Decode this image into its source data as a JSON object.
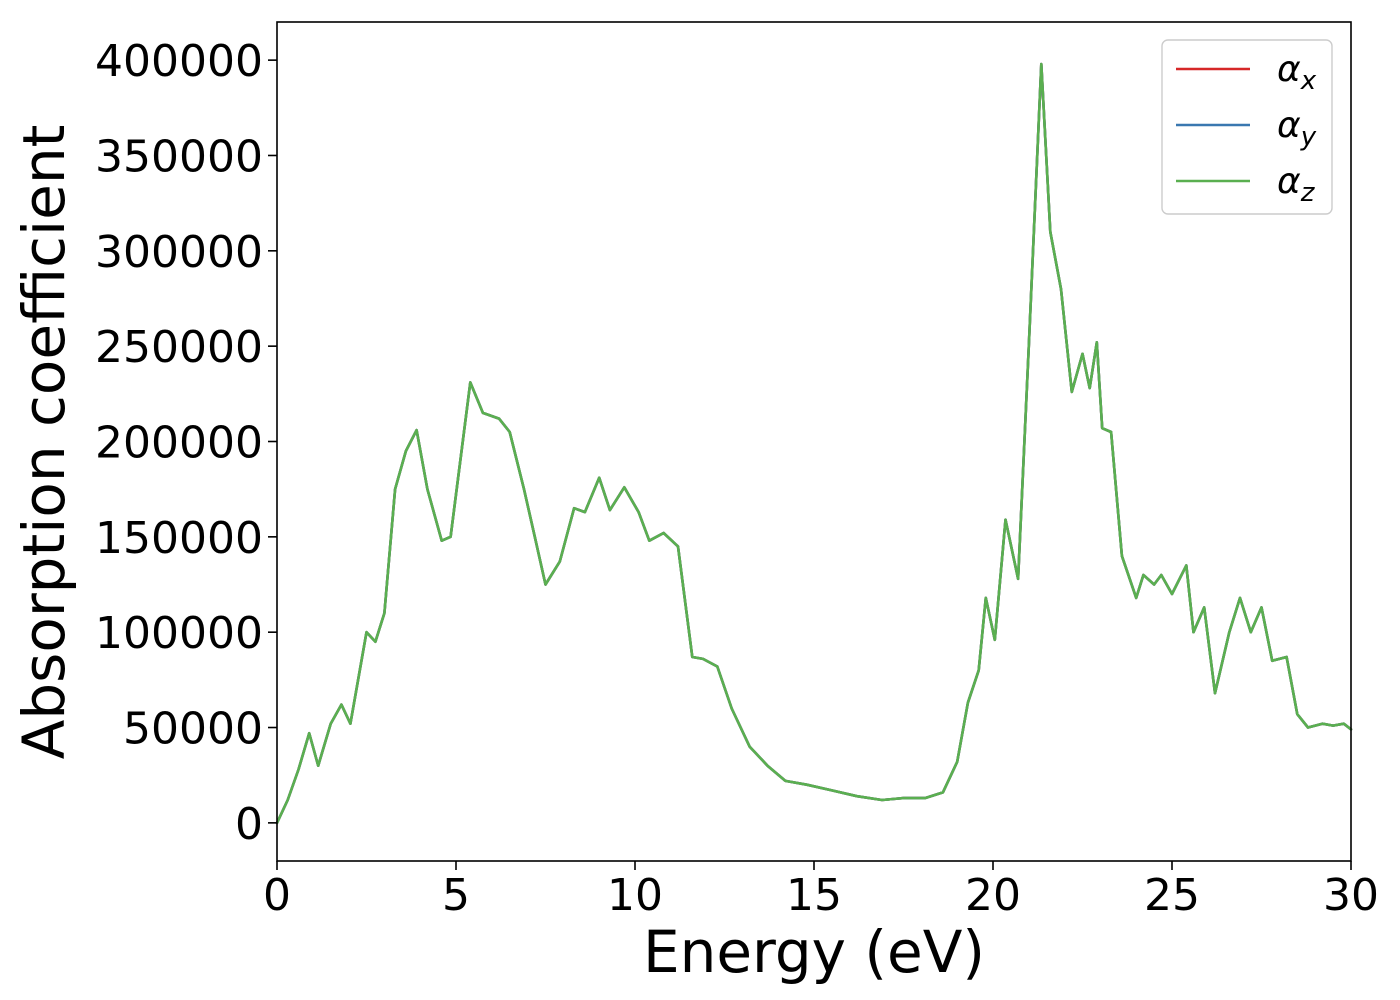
{
  "chart_data": {
    "type": "line",
    "title": "",
    "xlabel": "Energy (eV)",
    "ylabel": "Absorption coefficient",
    "xlim": [
      0,
      30
    ],
    "ylim": [
      -20000,
      420000
    ],
    "xticks": [
      0,
      5,
      10,
      15,
      20,
      25,
      30
    ],
    "yticks": [
      0,
      50000,
      100000,
      150000,
      200000,
      250000,
      300000,
      350000,
      400000
    ],
    "grid": false,
    "legend_position": "top-right",
    "series": [
      {
        "name": "αx",
        "legend_base": "α",
        "legend_sub": "x",
        "color": "#d62728",
        "x": [
          0,
          0.3,
          0.6,
          0.9,
          1.15,
          1.5,
          1.8,
          2.05,
          2.5,
          2.75,
          3.0,
          3.3,
          3.6,
          3.9,
          4.2,
          4.6,
          4.85,
          5.4,
          5.75,
          6.2,
          6.5,
          6.9,
          7.2,
          7.5,
          7.9,
          8.3,
          8.6,
          9.0,
          9.3,
          9.7,
          10.1,
          10.4,
          10.8,
          11.2,
          11.6,
          11.9,
          12.3,
          12.7,
          13.2,
          13.7,
          14.2,
          14.8,
          15.5,
          16.2,
          16.9,
          17.5,
          18.1,
          18.6,
          19.0,
          19.3,
          19.6,
          19.8,
          20.05,
          20.35,
          20.7,
          21.0,
          21.35,
          21.6,
          21.9,
          22.2,
          22.5,
          22.7,
          22.9,
          23.05,
          23.3,
          23.6,
          24.0,
          24.2,
          24.5,
          24.7,
          25.0,
          25.4,
          25.6,
          25.9,
          26.2,
          26.6,
          26.9,
          27.2,
          27.5,
          27.8,
          28.2,
          28.5,
          28.8,
          29.2,
          29.5,
          29.8,
          30.0
        ],
        "values": [
          0,
          12000,
          28000,
          47000,
          30000,
          52000,
          62000,
          52000,
          100000,
          95000,
          110000,
          175000,
          195000,
          206000,
          175000,
          148000,
          150000,
          231000,
          215000,
          212000,
          205000,
          175000,
          150000,
          125000,
          137000,
          165000,
          163000,
          181000,
          164000,
          176000,
          163000,
          148000,
          152000,
          145000,
          87000,
          86000,
          82000,
          60000,
          40000,
          30000,
          22000,
          20000,
          17000,
          14000,
          12000,
          13000,
          13000,
          16000,
          32000,
          63000,
          80000,
          118000,
          96000,
          159000,
          128000,
          250000,
          398000,
          310000,
          280000,
          226000,
          246000,
          228000,
          252000,
          207000,
          205000,
          140000,
          118000,
          130000,
          125000,
          130000,
          120000,
          135000,
          100000,
          113000,
          68000,
          100000,
          118000,
          100000,
          113000,
          85000,
          87000,
          57000,
          50000,
          52000,
          51000,
          52000,
          49000
        ]
      },
      {
        "name": "αy",
        "legend_base": "α",
        "legend_sub": "y",
        "color": "#3a78b0",
        "x": [
          0,
          0.3,
          0.6,
          0.9,
          1.15,
          1.5,
          1.8,
          2.05,
          2.5,
          2.75,
          3.0,
          3.3,
          3.6,
          3.9,
          4.2,
          4.6,
          4.85,
          5.4,
          5.75,
          6.2,
          6.5,
          6.9,
          7.2,
          7.5,
          7.9,
          8.3,
          8.6,
          9.0,
          9.3,
          9.7,
          10.1,
          10.4,
          10.8,
          11.2,
          11.6,
          11.9,
          12.3,
          12.7,
          13.2,
          13.7,
          14.2,
          14.8,
          15.5,
          16.2,
          16.9,
          17.5,
          18.1,
          18.6,
          19.0,
          19.3,
          19.6,
          19.8,
          20.05,
          20.35,
          20.7,
          21.0,
          21.35,
          21.6,
          21.9,
          22.2,
          22.5,
          22.7,
          22.9,
          23.05,
          23.3,
          23.6,
          24.0,
          24.2,
          24.5,
          24.7,
          25.0,
          25.4,
          25.6,
          25.9,
          26.2,
          26.6,
          26.9,
          27.2,
          27.5,
          27.8,
          28.2,
          28.5,
          28.8,
          29.2,
          29.5,
          29.8,
          30.0
        ],
        "values": [
          0,
          12000,
          28000,
          47000,
          30000,
          52000,
          62000,
          52000,
          100000,
          95000,
          110000,
          175000,
          195000,
          206000,
          175000,
          148000,
          150000,
          231000,
          215000,
          212000,
          205000,
          175000,
          150000,
          125000,
          137000,
          165000,
          163000,
          181000,
          164000,
          176000,
          163000,
          148000,
          152000,
          145000,
          87000,
          86000,
          82000,
          60000,
          40000,
          30000,
          22000,
          20000,
          17000,
          14000,
          12000,
          13000,
          13000,
          16000,
          32000,
          63000,
          80000,
          118000,
          96000,
          159000,
          128000,
          250000,
          398000,
          310000,
          280000,
          226000,
          246000,
          228000,
          252000,
          207000,
          205000,
          140000,
          118000,
          130000,
          125000,
          130000,
          120000,
          135000,
          100000,
          113000,
          68000,
          100000,
          118000,
          100000,
          113000,
          85000,
          87000,
          57000,
          50000,
          52000,
          51000,
          52000,
          49000
        ]
      },
      {
        "name": "αz",
        "legend_base": "α",
        "legend_sub": "z",
        "color": "#5aaf50",
        "x": [
          0,
          0.3,
          0.6,
          0.9,
          1.15,
          1.5,
          1.8,
          2.05,
          2.5,
          2.75,
          3.0,
          3.3,
          3.6,
          3.9,
          4.2,
          4.6,
          4.85,
          5.4,
          5.75,
          6.2,
          6.5,
          6.9,
          7.2,
          7.5,
          7.9,
          8.3,
          8.6,
          9.0,
          9.3,
          9.7,
          10.1,
          10.4,
          10.8,
          11.2,
          11.6,
          11.9,
          12.3,
          12.7,
          13.2,
          13.7,
          14.2,
          14.8,
          15.5,
          16.2,
          16.9,
          17.5,
          18.1,
          18.6,
          19.0,
          19.3,
          19.6,
          19.8,
          20.05,
          20.35,
          20.7,
          21.0,
          21.35,
          21.6,
          21.9,
          22.2,
          22.5,
          22.7,
          22.9,
          23.05,
          23.3,
          23.6,
          24.0,
          24.2,
          24.5,
          24.7,
          25.0,
          25.4,
          25.6,
          25.9,
          26.2,
          26.6,
          26.9,
          27.2,
          27.5,
          27.8,
          28.2,
          28.5,
          28.8,
          29.2,
          29.5,
          29.8,
          30.0
        ],
        "values": [
          0,
          12000,
          28000,
          47000,
          30000,
          52000,
          62000,
          52000,
          100000,
          95000,
          110000,
          175000,
          195000,
          206000,
          175000,
          148000,
          150000,
          231000,
          215000,
          212000,
          205000,
          175000,
          150000,
          125000,
          137000,
          165000,
          163000,
          181000,
          164000,
          176000,
          163000,
          148000,
          152000,
          145000,
          87000,
          86000,
          82000,
          60000,
          40000,
          30000,
          22000,
          20000,
          17000,
          14000,
          12000,
          13000,
          13000,
          16000,
          32000,
          63000,
          80000,
          118000,
          96000,
          159000,
          128000,
          250000,
          398000,
          310000,
          280000,
          226000,
          246000,
          228000,
          252000,
          207000,
          205000,
          140000,
          118000,
          130000,
          125000,
          130000,
          120000,
          135000,
          100000,
          113000,
          68000,
          100000,
          118000,
          100000,
          113000,
          85000,
          87000,
          57000,
          50000,
          52000,
          51000,
          52000,
          49000
        ]
      }
    ]
  }
}
